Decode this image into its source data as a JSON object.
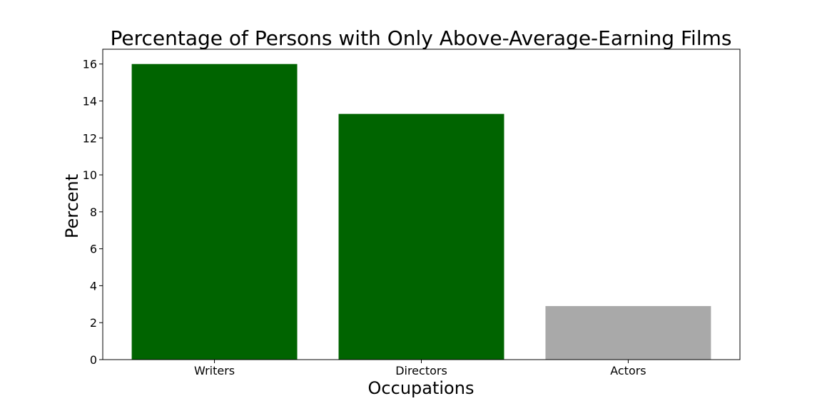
{
  "chart_data": {
    "type": "bar",
    "title": "Percentage of Persons with Only Above-Average-Earning Films",
    "xlabel": "Occupations",
    "ylabel": "Percent",
    "categories": [
      "Writers",
      "Directors",
      "Actors"
    ],
    "values": [
      16.0,
      13.3,
      2.9
    ],
    "bar_colors": [
      "#006400",
      "#006400",
      "#a9a9a9"
    ],
    "ylim": [
      0,
      16.8
    ],
    "yticks": [
      0,
      2,
      4,
      6,
      8,
      10,
      12,
      14,
      16
    ],
    "grid": false,
    "legend": "none"
  }
}
